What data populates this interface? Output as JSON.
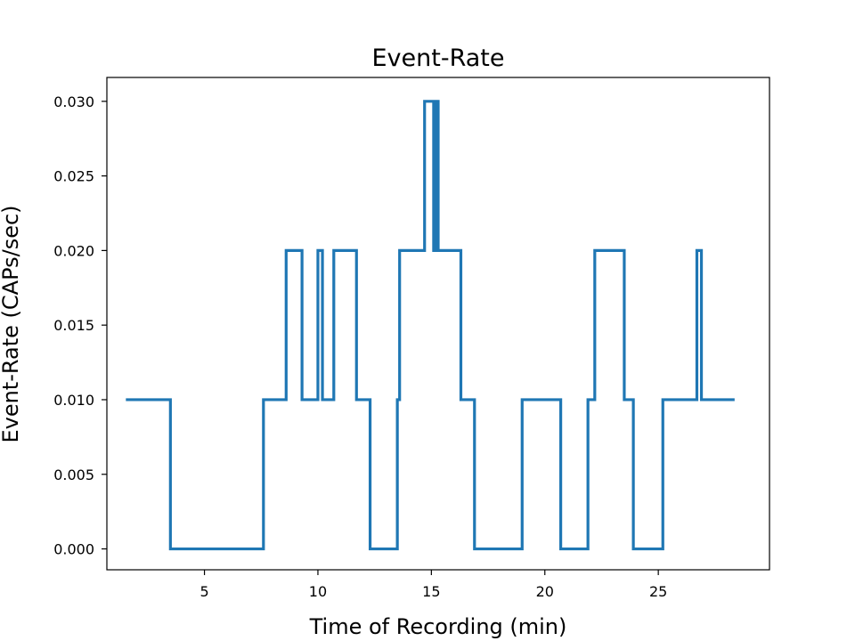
{
  "chart_data": {
    "type": "line",
    "step": true,
    "title": "Event-Rate",
    "xlabel": "Time of Recording (min)",
    "ylabel": "Event-Rate (CAPs/sec)",
    "xlim": [
      0.7,
      29.9
    ],
    "ylim": [
      -0.0014,
      0.0316
    ],
    "xticks": [
      5,
      10,
      15,
      20,
      25
    ],
    "xtick_labels": [
      "5",
      "10",
      "15",
      "20",
      "25"
    ],
    "yticks": [
      0.0,
      0.005,
      0.01,
      0.015,
      0.02,
      0.025,
      0.03
    ],
    "ytick_labels": [
      "0.000",
      "0.005",
      "0.010",
      "0.015",
      "0.020",
      "0.025",
      "0.030"
    ],
    "grid": false,
    "legend": false,
    "color": "#1f77b4",
    "series": [
      {
        "x": [
          1.6,
          3.5,
          3.5,
          7.6,
          7.6,
          8.6,
          8.6,
          9.3,
          9.3,
          10.0,
          10.0,
          10.2,
          10.2,
          10.7,
          10.7,
          11.7,
          11.7,
          12.3,
          12.3,
          13.5,
          13.5,
          13.6,
          13.6,
          14.7,
          14.7,
          15.1,
          15.1,
          15.2,
          15.2,
          15.3,
          15.3,
          16.3,
          16.3,
          16.9,
          16.9,
          19.0,
          19.0,
          20.7,
          20.7,
          21.9,
          21.9,
          22.2,
          22.2,
          23.5,
          23.5,
          23.9,
          23.9,
          25.2,
          25.2,
          26.7,
          26.7,
          26.9,
          26.9,
          28.3
        ],
        "y": [
          0.01,
          0.01,
          0.0,
          0.0,
          0.01,
          0.01,
          0.02,
          0.02,
          0.01,
          0.01,
          0.02,
          0.02,
          0.01,
          0.01,
          0.02,
          0.02,
          0.01,
          0.01,
          0.0,
          0.0,
          0.01,
          0.01,
          0.02,
          0.02,
          0.03,
          0.03,
          0.02,
          0.02,
          0.03,
          0.03,
          0.02,
          0.02,
          0.01,
          0.01,
          0.0,
          0.0,
          0.01,
          0.01,
          0.0,
          0.0,
          0.01,
          0.01,
          0.02,
          0.02,
          0.01,
          0.01,
          0.0,
          0.0,
          0.01,
          0.01,
          0.02,
          0.02,
          0.01,
          0.01
        ]
      }
    ]
  }
}
